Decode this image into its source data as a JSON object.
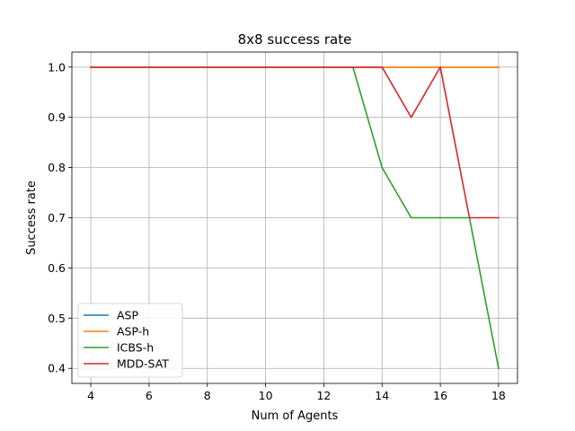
{
  "chart_data": {
    "type": "line",
    "title": "8x8 success rate",
    "xlabel": "Num of Agents",
    "ylabel": "Success rate",
    "xlim": [
      3.35,
      18.65
    ],
    "ylim": [
      0.37,
      1.03
    ],
    "xticks": [
      4,
      6,
      8,
      10,
      12,
      14,
      16,
      18
    ],
    "yticks": [
      0.4,
      0.5,
      0.6,
      0.7,
      0.8,
      0.9,
      1.0
    ],
    "ytick_labels": [
      "0.4",
      "0.5",
      "0.6",
      "0.7",
      "0.8",
      "0.9",
      "1.0"
    ],
    "grid": true,
    "legend_position": "bottom-left",
    "x": [
      4,
      5,
      6,
      7,
      8,
      9,
      10,
      11,
      12,
      13,
      14,
      15,
      16,
      17,
      18
    ],
    "series": [
      {
        "name": "ASP",
        "color": "#1f77b4",
        "values": [
          1.0,
          1.0,
          1.0,
          1.0,
          1.0,
          1.0,
          1.0,
          1.0,
          1.0,
          1.0,
          1.0,
          1.0,
          1.0,
          1.0,
          1.0
        ]
      },
      {
        "name": "ASP-h",
        "color": "#ff7f0e",
        "values": [
          1.0,
          1.0,
          1.0,
          1.0,
          1.0,
          1.0,
          1.0,
          1.0,
          1.0,
          1.0,
          1.0,
          1.0,
          1.0,
          1.0,
          1.0
        ]
      },
      {
        "name": "ICBS-h",
        "color": "#2ca02c",
        "values": [
          1.0,
          1.0,
          1.0,
          1.0,
          1.0,
          1.0,
          1.0,
          1.0,
          1.0,
          1.0,
          0.8,
          0.7,
          0.7,
          0.7,
          0.4
        ]
      },
      {
        "name": "MDD-SAT",
        "color": "#d62728",
        "values": [
          1.0,
          1.0,
          1.0,
          1.0,
          1.0,
          1.0,
          1.0,
          1.0,
          1.0,
          1.0,
          1.0,
          0.9,
          1.0,
          0.7,
          0.7
        ]
      }
    ]
  }
}
